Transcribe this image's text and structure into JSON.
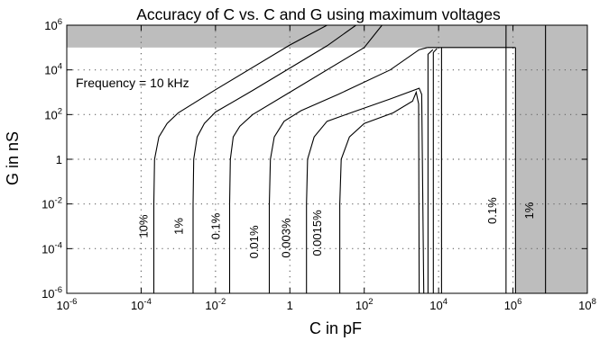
{
  "chart_data": {
    "type": "line",
    "title": "Accuracy of C vs. C and G using maximum voltages",
    "xlabel": "C in pF",
    "ylabel": "G in nS",
    "xscale": "log",
    "yscale": "log",
    "xlim": [
      1e-06,
      100000000.0
    ],
    "ylim": [
      1e-06,
      1000000.0
    ],
    "grid": true,
    "x_ticks": [
      {
        "base": "10",
        "exp": "-6",
        "value": 1e-06
      },
      {
        "base": "10",
        "exp": "-4",
        "value": 0.0001
      },
      {
        "base": "10",
        "exp": "-2",
        "value": 0.01
      },
      {
        "base": "1",
        "exp": "",
        "value": 1
      },
      {
        "base": "10",
        "exp": "2",
        "value": 100.0
      },
      {
        "base": "10",
        "exp": "4",
        "value": 10000.0
      },
      {
        "base": "10",
        "exp": "6",
        "value": 1000000.0
      },
      {
        "base": "10",
        "exp": "8",
        "value": 100000000.0
      }
    ],
    "y_ticks": [
      {
        "base": "10",
        "exp": "-6",
        "value": 1e-06
      },
      {
        "base": "10",
        "exp": "-4",
        "value": 0.0001
      },
      {
        "base": "10",
        "exp": "-2",
        "value": 0.01
      },
      {
        "base": "1",
        "exp": "",
        "value": 1
      },
      {
        "base": "10",
        "exp": "2",
        "value": 100.0
      },
      {
        "base": "10",
        "exp": "4",
        "value": 10000.0
      },
      {
        "base": "10",
        "exp": "6",
        "value": 1000000.0
      }
    ],
    "annotation": "Frequency = 10 kHz",
    "shaded_regions": [
      {
        "x": [
          1e-06,
          100000000.0
        ],
        "y": [
          100000.0,
          1000000.0
        ]
      },
      {
        "x": [
          1200000.0,
          100000000.0
        ],
        "y": [
          1e-06,
          1000000.0
        ]
      }
    ],
    "contours": [
      {
        "label": "10%",
        "x_left": 0.00022,
        "label_at": [
          0.00015,
          0.001
        ],
        "points": [
          [
            0.00022,
            1e-06
          ],
          [
            0.00022,
            0.01
          ],
          [
            0.00023,
            1
          ],
          [
            0.0003,
            10.0
          ],
          [
            0.0005,
            40.0
          ],
          [
            0.001,
            120.0
          ],
          [
            0.01,
            1300.0
          ],
          [
            1,
            130000.0
          ],
          [
            10,
            1000000.0
          ]
        ]
      },
      {
        "label": "1%",
        "x_left": 0.0025,
        "label_at": [
          0.0013,
          0.001
        ],
        "points": [
          [
            0.0025,
            1e-06
          ],
          [
            0.0025,
            0.01
          ],
          [
            0.0026,
            1
          ],
          [
            0.0032,
            10.0
          ],
          [
            0.005,
            40.0
          ],
          [
            0.01,
            130.0
          ],
          [
            0.1,
            1200.0
          ],
          [
            10,
            120000.0
          ],
          [
            60,
            1000000.0
          ]
        ]
      },
      {
        "label": "0.1%",
        "x_left": 0.024,
        "label_at": [
          0.013,
          0.001
        ],
        "points": [
          [
            0.024,
            1e-06
          ],
          [
            0.024,
            0.01
          ],
          [
            0.025,
            1
          ],
          [
            0.03,
            10.0
          ],
          [
            0.045,
            30.0
          ],
          [
            0.1,
            100.0
          ],
          [
            1,
            1000.0
          ],
          [
            100,
            100000.0
          ],
          [
            300,
            1000000.0
          ]
        ]
      },
      {
        "label": "0.01%",
        "x_left": 0.28,
        "label_at": [
          0.14,
          0.0002
        ],
        "points": [
          [
            0.28,
            1e-06
          ],
          [
            0.28,
            0.01
          ],
          [
            0.3,
            1
          ],
          [
            0.38,
            10.0
          ],
          [
            0.7,
            50.0
          ],
          [
            2,
            150.0
          ],
          [
            20,
            800.0
          ],
          [
            500,
            10000.0
          ],
          [
            3000,
            80000.0
          ],
          [
            5000,
            100000.0
          ]
        ]
      },
      {
        "label": "0.003%",
        "x_left": 2.8,
        "label_at": [
          1.0,
          0.0003
        ],
        "points": [
          [
            2.8,
            1e-06
          ],
          [
            2.8,
            0.01
          ],
          [
            3,
            1
          ],
          [
            4.5,
            10.0
          ],
          [
            10,
            50.0
          ],
          [
            50,
            130.0
          ],
          [
            500,
            500.0
          ],
          [
            3000,
            1500.0
          ],
          [
            3500,
            800.0
          ],
          [
            4000,
            1e-06
          ]
        ]
      },
      {
        "label": "0.0015%",
        "x_left": 22,
        "label_at": [
          7,
          0.0005
        ],
        "points": [
          [
            22,
            1e-06
          ],
          [
            22,
            0.01
          ],
          [
            24,
            1
          ],
          [
            40,
            10.0
          ],
          [
            100,
            40.0
          ],
          [
            600,
            120.0
          ],
          [
            2000,
            400.0
          ],
          [
            2500,
            1000.0
          ],
          [
            2900,
            300.0
          ],
          [
            3000,
            1e-06
          ]
        ]
      }
    ],
    "vertical_boundaries": [
      {
        "x": 5200,
        "points": [
          [
            5200,
            1e-06
          ],
          [
            5200,
            50000.0
          ],
          [
            7000,
            80000.0
          ]
        ]
      },
      {
        "x": 7200,
        "points": [
          [
            7200,
            1e-06
          ],
          [
            7200,
            60000.0
          ],
          [
            9000,
            90000.0
          ]
        ]
      },
      {
        "x": 12000.0,
        "points": [
          [
            12000.0,
            1e-06
          ],
          [
            12000.0,
            100000.0
          ]
        ]
      }
    ],
    "right_boundaries": [
      {
        "label": "0.1%",
        "x": 650000.0,
        "label_at": [
          350000.0,
          0.005
        ]
      },
      {
        "label": "1%",
        "x": 7500000.0,
        "label_at": [
          3500000.0,
          0.005
        ]
      }
    ],
    "colors": {
      "shade": "#bdbdbd",
      "line": "#000000",
      "grid": "#666666"
    }
  }
}
